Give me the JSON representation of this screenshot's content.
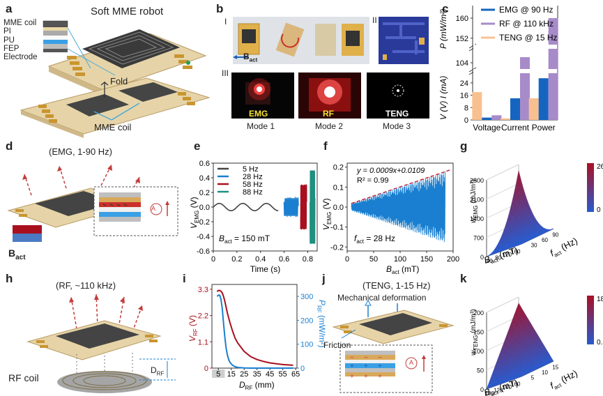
{
  "panels": {
    "a": {
      "label": "a",
      "title": "Soft MME robot",
      "layers": [
        "MME coil",
        "PI",
        "PU",
        "FEP",
        "Electrode"
      ],
      "fold": "Fold",
      "coil": "MME coil"
    },
    "b": {
      "label": "b",
      "roman": [
        "I",
        "II",
        "III"
      ],
      "bact": "B",
      "bact_sub": "act",
      "glows": [
        "EMG",
        "RF",
        "TENG"
      ],
      "modes": [
        "Mode 1",
        "Mode 2",
        "Mode 3"
      ]
    },
    "c": {
      "label": "c"
    },
    "d": {
      "label": "d",
      "title": "(EMG, 1-90 Hz)",
      "bact": "B",
      "bact_sub": "act",
      "ammeter": "A"
    },
    "e": {
      "label": "e",
      "annot": "B",
      "annot_sub": "act",
      "annot_tail": " = 150 mT"
    },
    "f": {
      "label": "f",
      "eq": "y = 0.0009x+0.0109",
      "r2": "R² = 0.99",
      "annot": "f",
      "annot_sub": "act",
      "annot_tail": " = 28 Hz"
    },
    "g": {
      "label": "g"
    },
    "h": {
      "label": "h",
      "title": "(RF, ~110 kHz)",
      "coil": "RF coil",
      "dist": "D",
      "dist_sub": "RF"
    },
    "i": {
      "label": "i"
    },
    "j": {
      "label": "j",
      "title": "(TENG, 1-15 Hz)",
      "mech": "Mechanical deformation",
      "friction": "Friction",
      "ammeter": "A"
    },
    "k": {
      "label": "k"
    }
  },
  "colors": {
    "emg": "#1565c0",
    "rf": "#a78bc9",
    "teng": "#f9c08f",
    "red": "#a8101f",
    "blue": "#1a7fd0",
    "teal": "#1f8f7f",
    "gray": "#444444"
  },
  "chart_data": [
    {
      "id": "c",
      "type": "bar",
      "categories": [
        "Voltage",
        "Current",
        "Power"
      ],
      "series": [
        {
          "name": "EMG @ 90 Hz",
          "values": [
            1.5,
            14,
            27
          ]
        },
        {
          "name": "RF @ 110 kHz",
          "values": [
            3,
            108,
            160
          ]
        },
        {
          "name": "TENG @ 15 Hz",
          "values": [
            18,
            1,
            14
          ]
        }
      ],
      "ylabel_left": "V (V)   I (mA)",
      "ylabel_right": "P (mW/m²)",
      "ytick_lower": [
        "0",
        "8",
        "16",
        "24"
      ],
      "ytick_upper": [
        "104",
        "152",
        "160"
      ],
      "ylim": [
        0,
        165
      ],
      "axis_breaks": [
        [
          28,
          100
        ],
        [
          112,
          150
        ]
      ]
    },
    {
      "id": "e",
      "type": "line",
      "xlabel": "Time (s)",
      "ylabel": "V",
      "ylabel_sub": "EMG",
      "ylabel_tail": " (V)",
      "xticks": [
        "0",
        "0.2",
        "0.4",
        "0.6",
        "0.8"
      ],
      "yticks": [
        "-0.6",
        "-0.4",
        "-0.2",
        "0.0",
        "0.2",
        "0.4",
        "0.6"
      ],
      "xlim": [
        0,
        0.88
      ],
      "ylim": [
        -0.6,
        0.6
      ],
      "series": [
        {
          "name": "5 Hz",
          "amp": 0.05,
          "freq": 5,
          "x": [
            0.0,
            0.55
          ]
        },
        {
          "name": "28 Hz",
          "amp": 0.12,
          "freq": 28,
          "x": [
            0.6,
            0.72
          ]
        },
        {
          "name": "58 Hz",
          "amp": 0.3,
          "freq": 58,
          "x": [
            0.74,
            0.79
          ]
        },
        {
          "name": "88 Hz",
          "amp": 0.5,
          "freq": 88,
          "x": [
            0.82,
            0.86
          ]
        }
      ]
    },
    {
      "id": "f",
      "type": "line",
      "xlabel": "B",
      "xlabel_sub": "act",
      "xlabel_tail": " (mT)",
      "ylabel": "V",
      "ylabel_sub": "EMG",
      "ylabel_tail": " (V)",
      "xticks": [
        "0",
        "50",
        "100",
        "150",
        "200"
      ],
      "yticks": [
        "-0.2",
        "-0.1",
        "0.0",
        "0.1",
        "0.2"
      ],
      "xlim": [
        0,
        200
      ],
      "ylim": [
        -0.22,
        0.22
      ],
      "series": [
        {
          "name": "V_EMG",
          "envelope": {
            "slope": 0.0009,
            "intercept": 0.0109
          },
          "x": [
            8,
            185
          ]
        }
      ]
    },
    {
      "id": "g",
      "type": "heatmap",
      "zlabel": "w",
      "zlabel_sub": "EMG",
      "zlabel_tail": " (mJ/m³)",
      "xlabel": "B",
      "xlabel_sub": "act",
      "xlabel_tail": " (mT)",
      "ylabel": "f",
      "ylabel_sub": "act",
      "ylabel_tail": " (Hz)",
      "zticks": [
        "0",
        "700",
        "1400",
        "2100",
        "2800"
      ],
      "xticks": [
        "40",
        "80",
        "120",
        "160"
      ],
      "yticks": [
        "30",
        "60",
        "90"
      ],
      "colorbar": [
        "2660",
        "0"
      ]
    },
    {
      "id": "i",
      "type": "line",
      "xlabel": "D",
      "xlabel_sub": "RF",
      "xlabel_tail": " (mm)",
      "ylabel_left": "V",
      "ylabel_left_sub": "RF",
      "ylabel_left_tail": " (V)",
      "ylabel_right": "P",
      "ylabel_right_sub": "RF",
      "ylabel_right_tail": " (mW/m²)",
      "xticks": [
        "5",
        "15",
        "25",
        "35",
        "45",
        "55",
        "65"
      ],
      "yticks_left": [
        "0",
        "1.1",
        "2.2",
        "3.3"
      ],
      "yticks_right": [
        "0",
        "100",
        "200",
        "300"
      ],
      "xlim": [
        0,
        66
      ],
      "series": [
        {
          "name": "V_RF",
          "x": [
            4,
            5,
            6,
            7,
            8,
            9,
            10,
            12,
            14,
            16,
            18,
            20,
            25,
            30,
            35,
            40,
            45,
            50,
            55,
            60,
            63
          ],
          "y": [
            3.2,
            3.25,
            3.25,
            3.22,
            3.15,
            3.0,
            2.8,
            2.3,
            1.9,
            1.55,
            1.25,
            1.05,
            0.7,
            0.48,
            0.36,
            0.28,
            0.22,
            0.18,
            0.15,
            0.13,
            0.12
          ]
        },
        {
          "name": "P_RF",
          "x": [
            4,
            5,
            6,
            7,
            8,
            9,
            10,
            11,
            12,
            13,
            14,
            16,
            18,
            20,
            25,
            30,
            40,
            50,
            60,
            63
          ],
          "y": [
            300,
            305,
            305,
            290,
            250,
            190,
            130,
            85,
            55,
            36,
            24,
            12,
            6,
            3,
            1,
            0,
            0,
            0,
            0,
            0
          ]
        }
      ]
    },
    {
      "id": "k",
      "type": "heatmap",
      "zlabel": "w",
      "zlabel_sub": "TENG",
      "zlabel_tail": " (mJ/m³)",
      "xlabel": "B",
      "xlabel_sub": "act",
      "xlabel_tail": " (mT)",
      "ylabel": "f",
      "ylabel_sub": "act",
      "ylabel_tail": " (Hz)",
      "zticks": [
        "0",
        "50",
        "100",
        "150",
        "200"
      ],
      "xticks": [
        "100",
        "120",
        "140",
        "160"
      ],
      "yticks": [
        "5",
        "10",
        "15"
      ],
      "colorbar": [
        "184",
        "0.5"
      ]
    }
  ]
}
